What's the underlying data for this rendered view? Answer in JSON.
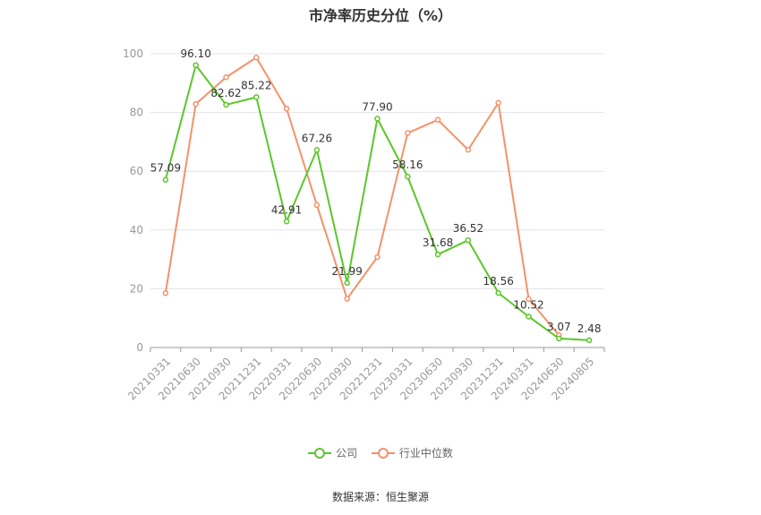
{
  "chart_data": {
    "type": "line",
    "title": "市净率历史分位（%）",
    "categories": [
      "20210331",
      "20210630",
      "20210930",
      "20211231",
      "20220331",
      "20220630",
      "20220930",
      "20221231",
      "20230331",
      "20230630",
      "20230930",
      "20231231",
      "20240331",
      "20240630",
      "20240805"
    ],
    "ylim": [
      0,
      100
    ],
    "yticks": [
      0,
      20,
      40,
      60,
      80,
      100
    ],
    "grid": true,
    "legend_position": "bottom",
    "series": [
      {
        "name": "公司",
        "color": "#5cc62b",
        "show_labels": true,
        "values": [
          57.09,
          96.1,
          82.62,
          85.22,
          42.91,
          67.26,
          21.99,
          77.9,
          58.16,
          31.68,
          36.52,
          18.56,
          10.52,
          3.07,
          2.48
        ]
      },
      {
        "name": "行业中位数",
        "color": "#f4926a",
        "show_labels": false,
        "values": [
          18.5,
          82.9,
          92.0,
          98.7,
          81.3,
          48.5,
          16.6,
          30.8,
          73.0,
          77.5,
          67.3,
          83.3,
          16.5,
          4.2,
          null
        ]
      }
    ]
  },
  "source": "数据来源：恒生聚源"
}
